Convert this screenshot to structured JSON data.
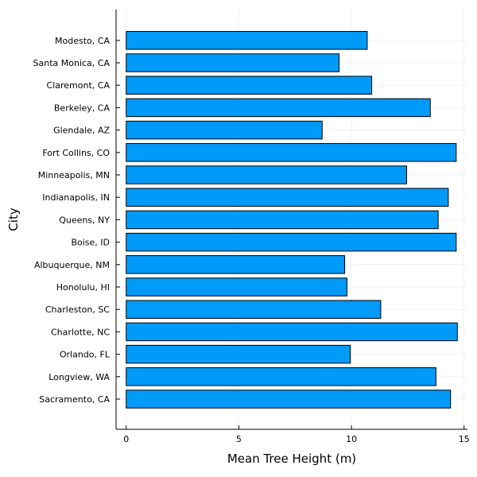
{
  "chart_data": {
    "type": "bar",
    "orientation": "horizontal",
    "categories": [
      "Sacramento, CA",
      "Longview, WA",
      "Orlando, FL",
      "Charlotte, NC",
      "Charleston, SC",
      "Honolulu, HI",
      "Albuquerque, NM",
      "Boise, ID",
      "Queens, NY",
      "Indianapolis, IN",
      "Minneapolis, MN",
      "Fort Collins, CO",
      "Glendale, AZ",
      "Berkeley, CA",
      "Claremont, CA",
      "Santa Monica, CA",
      "Modesto, CA"
    ],
    "values": [
      14.4,
      13.75,
      9.95,
      14.7,
      11.3,
      9.8,
      9.7,
      14.65,
      13.85,
      14.3,
      12.45,
      14.65,
      8.7,
      13.5,
      10.9,
      9.45,
      10.7
    ],
    "xlabel": "Mean Tree Height (m)",
    "ylabel": "City",
    "xlim": [
      -0.45,
      15.15
    ],
    "xticks": [
      0,
      5,
      10,
      15
    ],
    "grid": true,
    "legend": "none",
    "bar_color": "#009af9"
  }
}
